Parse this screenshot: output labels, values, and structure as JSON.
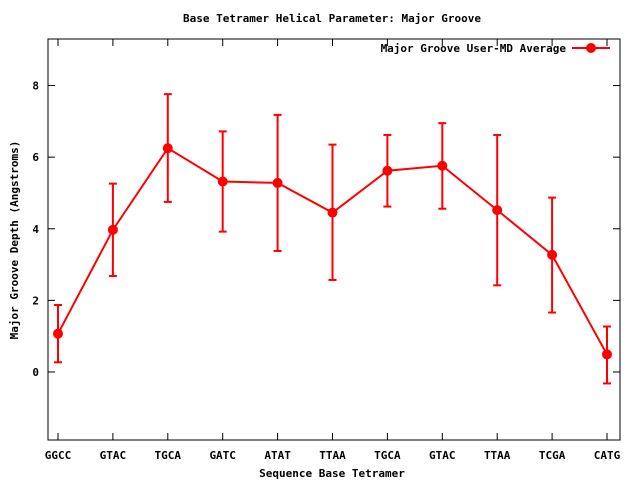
{
  "chart_data": {
    "type": "line",
    "title": "Base Tetramer Helical Parameter: Major Groove",
    "xlabel": "Sequence Base Tetramer",
    "ylabel": "Major Groove Depth (Angstroms)",
    "categories": [
      "GGCC",
      "GTAC",
      "TGCA",
      "GATC",
      "ATAT",
      "TTAA",
      "TGCA",
      "GTAC",
      "TTAA",
      "TCGA",
      "CATG"
    ],
    "ylim": [
      -1.9,
      9.3
    ],
    "yticks": [
      0,
      2,
      4,
      6,
      8
    ],
    "grid": false,
    "legend_position": "top-right",
    "series": [
      {
        "name": "Major Groove User-MD Average",
        "color": "#ff0000",
        "values": [
          1.07,
          3.97,
          6.25,
          5.32,
          5.28,
          4.45,
          5.62,
          5.76,
          4.52,
          3.27,
          0.49
        ],
        "error_low": [
          0.27,
          2.68,
          4.75,
          3.92,
          3.38,
          2.57,
          4.62,
          4.56,
          2.42,
          1.66,
          -0.32
        ],
        "error_high": [
          1.87,
          5.26,
          7.76,
          6.72,
          7.18,
          6.35,
          6.62,
          6.95,
          6.62,
          4.87,
          1.27
        ]
      }
    ]
  }
}
